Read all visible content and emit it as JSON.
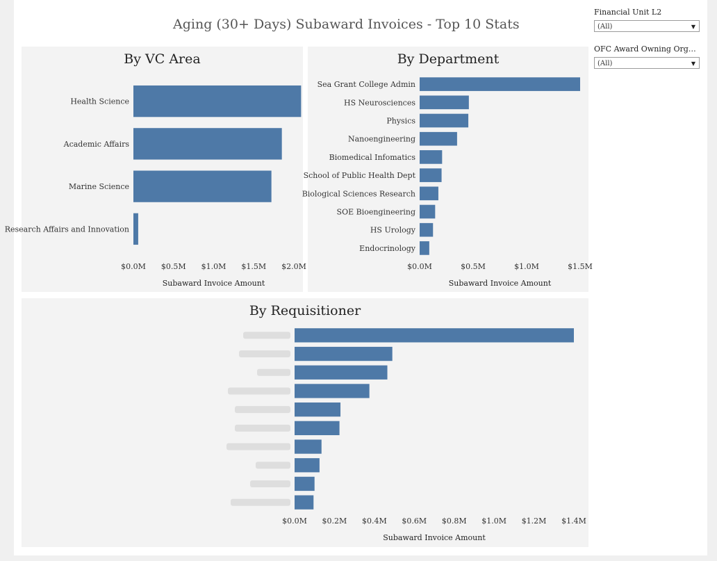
{
  "dashboard": {
    "title": "Aging (30+ Days) Subaward Invoices - Top 10 Stats"
  },
  "filters": [
    {
      "label": "Financial Unit L2",
      "value": "(All)"
    },
    {
      "label": "OFC Award Owning Organi...",
      "value": "(All)"
    }
  ],
  "colors": {
    "bar": "#4e79a7",
    "panel": "#f3f3f3"
  },
  "chart_data": [
    {
      "type": "bar",
      "orientation": "horizontal",
      "title": "By VC Area",
      "xlabel": "Subaward Invoice Amount",
      "categories": [
        "Health Science",
        "Academic Affairs",
        "Marine Science",
        "Research Affairs and Innovation"
      ],
      "values": [
        2.09,
        1.85,
        1.72,
        0.06
      ],
      "xlim": [
        0,
        2.0
      ],
      "ticks": [
        "$0.0M",
        "$0.5M",
        "$1.0M",
        "$1.5M",
        "$2.0M"
      ],
      "tick_values": [
        0,
        0.5,
        1.0,
        1.5,
        2.0
      ]
    },
    {
      "type": "bar",
      "orientation": "horizontal",
      "title": "By Department",
      "xlabel": "Subaward Invoice Amount",
      "categories": [
        "Sea Grant College Admin",
        "HS Neurosciences",
        "Physics",
        "Nanoengineering",
        "Biomedical Infomatics",
        "School of Public Health Dept",
        "Biological Sciences Research",
        "SOE Bioengineering",
        "HS Urology",
        "Endocrinology"
      ],
      "values": [
        1.5,
        0.46,
        0.455,
        0.35,
        0.21,
        0.205,
        0.175,
        0.145,
        0.125,
        0.09
      ],
      "xlim": [
        0,
        1.5
      ],
      "ticks": [
        "$0.0M",
        "$0.5M",
        "$1.0M",
        "$1.5M"
      ],
      "tick_values": [
        0,
        0.5,
        1.0,
        1.5
      ]
    },
    {
      "type": "bar",
      "orientation": "horizontal",
      "title": "By Requisitioner",
      "xlabel": "Subaward Invoice Amount",
      "categories_redacted": true,
      "values": [
        1.4,
        0.49,
        0.465,
        0.375,
        0.23,
        0.225,
        0.135,
        0.125,
        0.1,
        0.095
      ],
      "xlim": [
        0,
        1.4
      ],
      "ticks": [
        "$0.0M",
        "$0.2M",
        "$0.4M",
        "$0.6M",
        "$0.8M",
        "$1.0M",
        "$1.2M",
        "$1.4M"
      ],
      "tick_values": [
        0,
        0.2,
        0.4,
        0.6,
        0.8,
        1.0,
        1.2,
        1.4
      ]
    }
  ]
}
